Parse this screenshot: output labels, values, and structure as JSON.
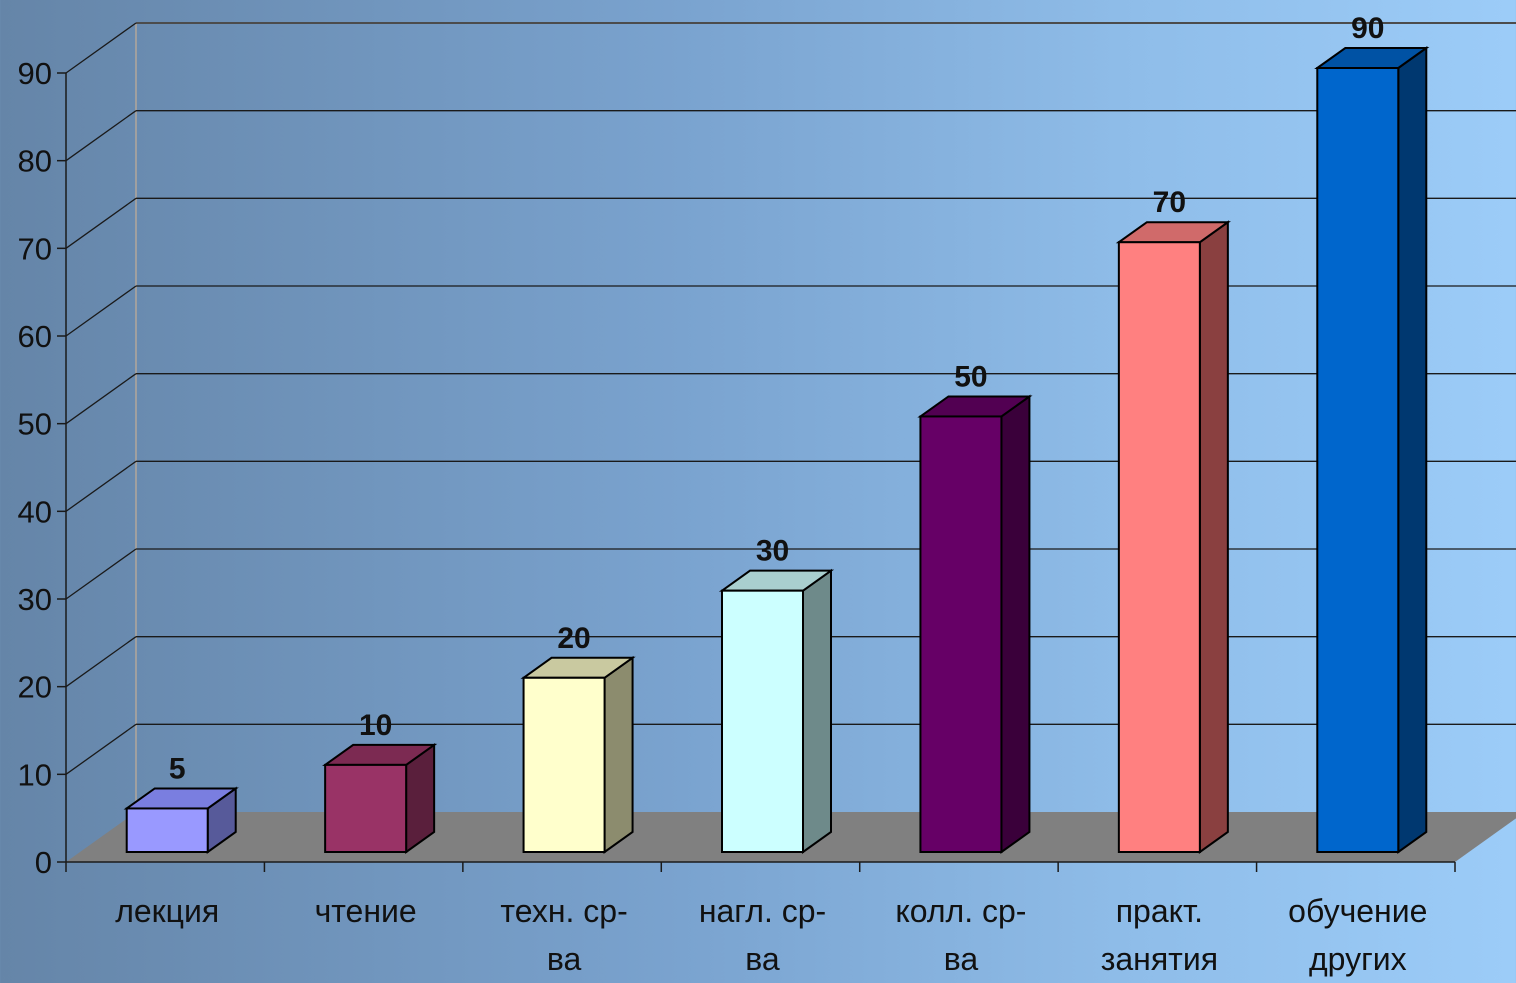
{
  "chart_data": {
    "type": "bar",
    "style": "3d-column",
    "categories": [
      [
        "лекция"
      ],
      [
        "чтение"
      ],
      [
        "техн. ср-",
        "ва"
      ],
      [
        "нагл. ср-",
        "ва"
      ],
      [
        "колл. ср-",
        "ва"
      ],
      [
        "практ.",
        "занятия"
      ],
      [
        "обучение",
        "других"
      ]
    ],
    "values": [
      5,
      10,
      20,
      30,
      50,
      70,
      90
    ],
    "value_labels": [
      "5",
      "10",
      "20",
      "30",
      "50",
      "70",
      "90"
    ],
    "bar_colors": [
      {
        "front": "#9999ff",
        "side": "#575a9a",
        "top": "#7a7ee0"
      },
      {
        "front": "#993366",
        "side": "#5a1f3c",
        "top": "#7c2a52"
      },
      {
        "front": "#ffffcc",
        "side": "#8c8c6e",
        "top": "#c9c9a0"
      },
      {
        "front": "#ccffff",
        "side": "#6e8a8a",
        "top": "#a9cfcf"
      },
      {
        "front": "#660066",
        "side": "#3a003a",
        "top": "#520052"
      },
      {
        "front": "#ff8080",
        "side": "#8a4040",
        "top": "#d06a6a"
      },
      {
        "front": "#0066cc",
        "side": "#003870",
        "top": "#0052a4"
      }
    ],
    "y_ticks": [
      "0",
      "10",
      "20",
      "30",
      "40",
      "50",
      "60",
      "70",
      "80",
      "90"
    ],
    "ylim": [
      0,
      90
    ],
    "grid": true,
    "floor_color": "#808080",
    "title": "",
    "xlabel": "",
    "ylabel": ""
  }
}
